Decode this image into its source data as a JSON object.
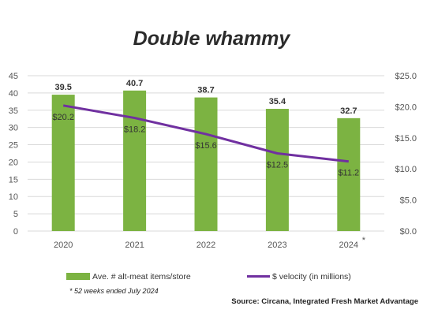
{
  "chart_data": {
    "type": "bar",
    "title": "Double whammy",
    "categories": [
      "2020",
      "2021",
      "2022",
      "2023",
      "2024"
    ],
    "category_marks": [
      "",
      "",
      "",
      "",
      "*"
    ],
    "series": [
      {
        "name": "Ave. # alt-meat items/store",
        "type": "bar",
        "axis": "left",
        "color": "#7cb342",
        "values": [
          39.5,
          40.7,
          38.7,
          35.4,
          32.7
        ],
        "labels": [
          "39.5",
          "40.7",
          "38.7",
          "35.4",
          "32.7"
        ]
      },
      {
        "name": "$ velocity (in millions)",
        "type": "line",
        "axis": "right",
        "color": "#7030a0",
        "values": [
          20.2,
          18.2,
          15.6,
          12.5,
          11.2
        ],
        "labels": [
          "$20.2",
          "$18.2",
          "$15.6",
          "$12.5",
          "$11.2"
        ]
      }
    ],
    "y_left": {
      "ylim": [
        0,
        45
      ],
      "ticks": [
        "0",
        "5",
        "10",
        "15",
        "20",
        "25",
        "30",
        "35",
        "40",
        "45"
      ]
    },
    "y_right": {
      "ylim": [
        0,
        25
      ],
      "ticks": [
        "$0.0",
        "$5.0",
        "$10.0",
        "$15.0",
        "$20.0",
        "$25.0"
      ]
    },
    "grid": true,
    "legend_position": "bottom",
    "footnote": "* 52 weeks ended July 2024",
    "source": "Source: Circana, Integrated Fresh Market Advantage"
  }
}
